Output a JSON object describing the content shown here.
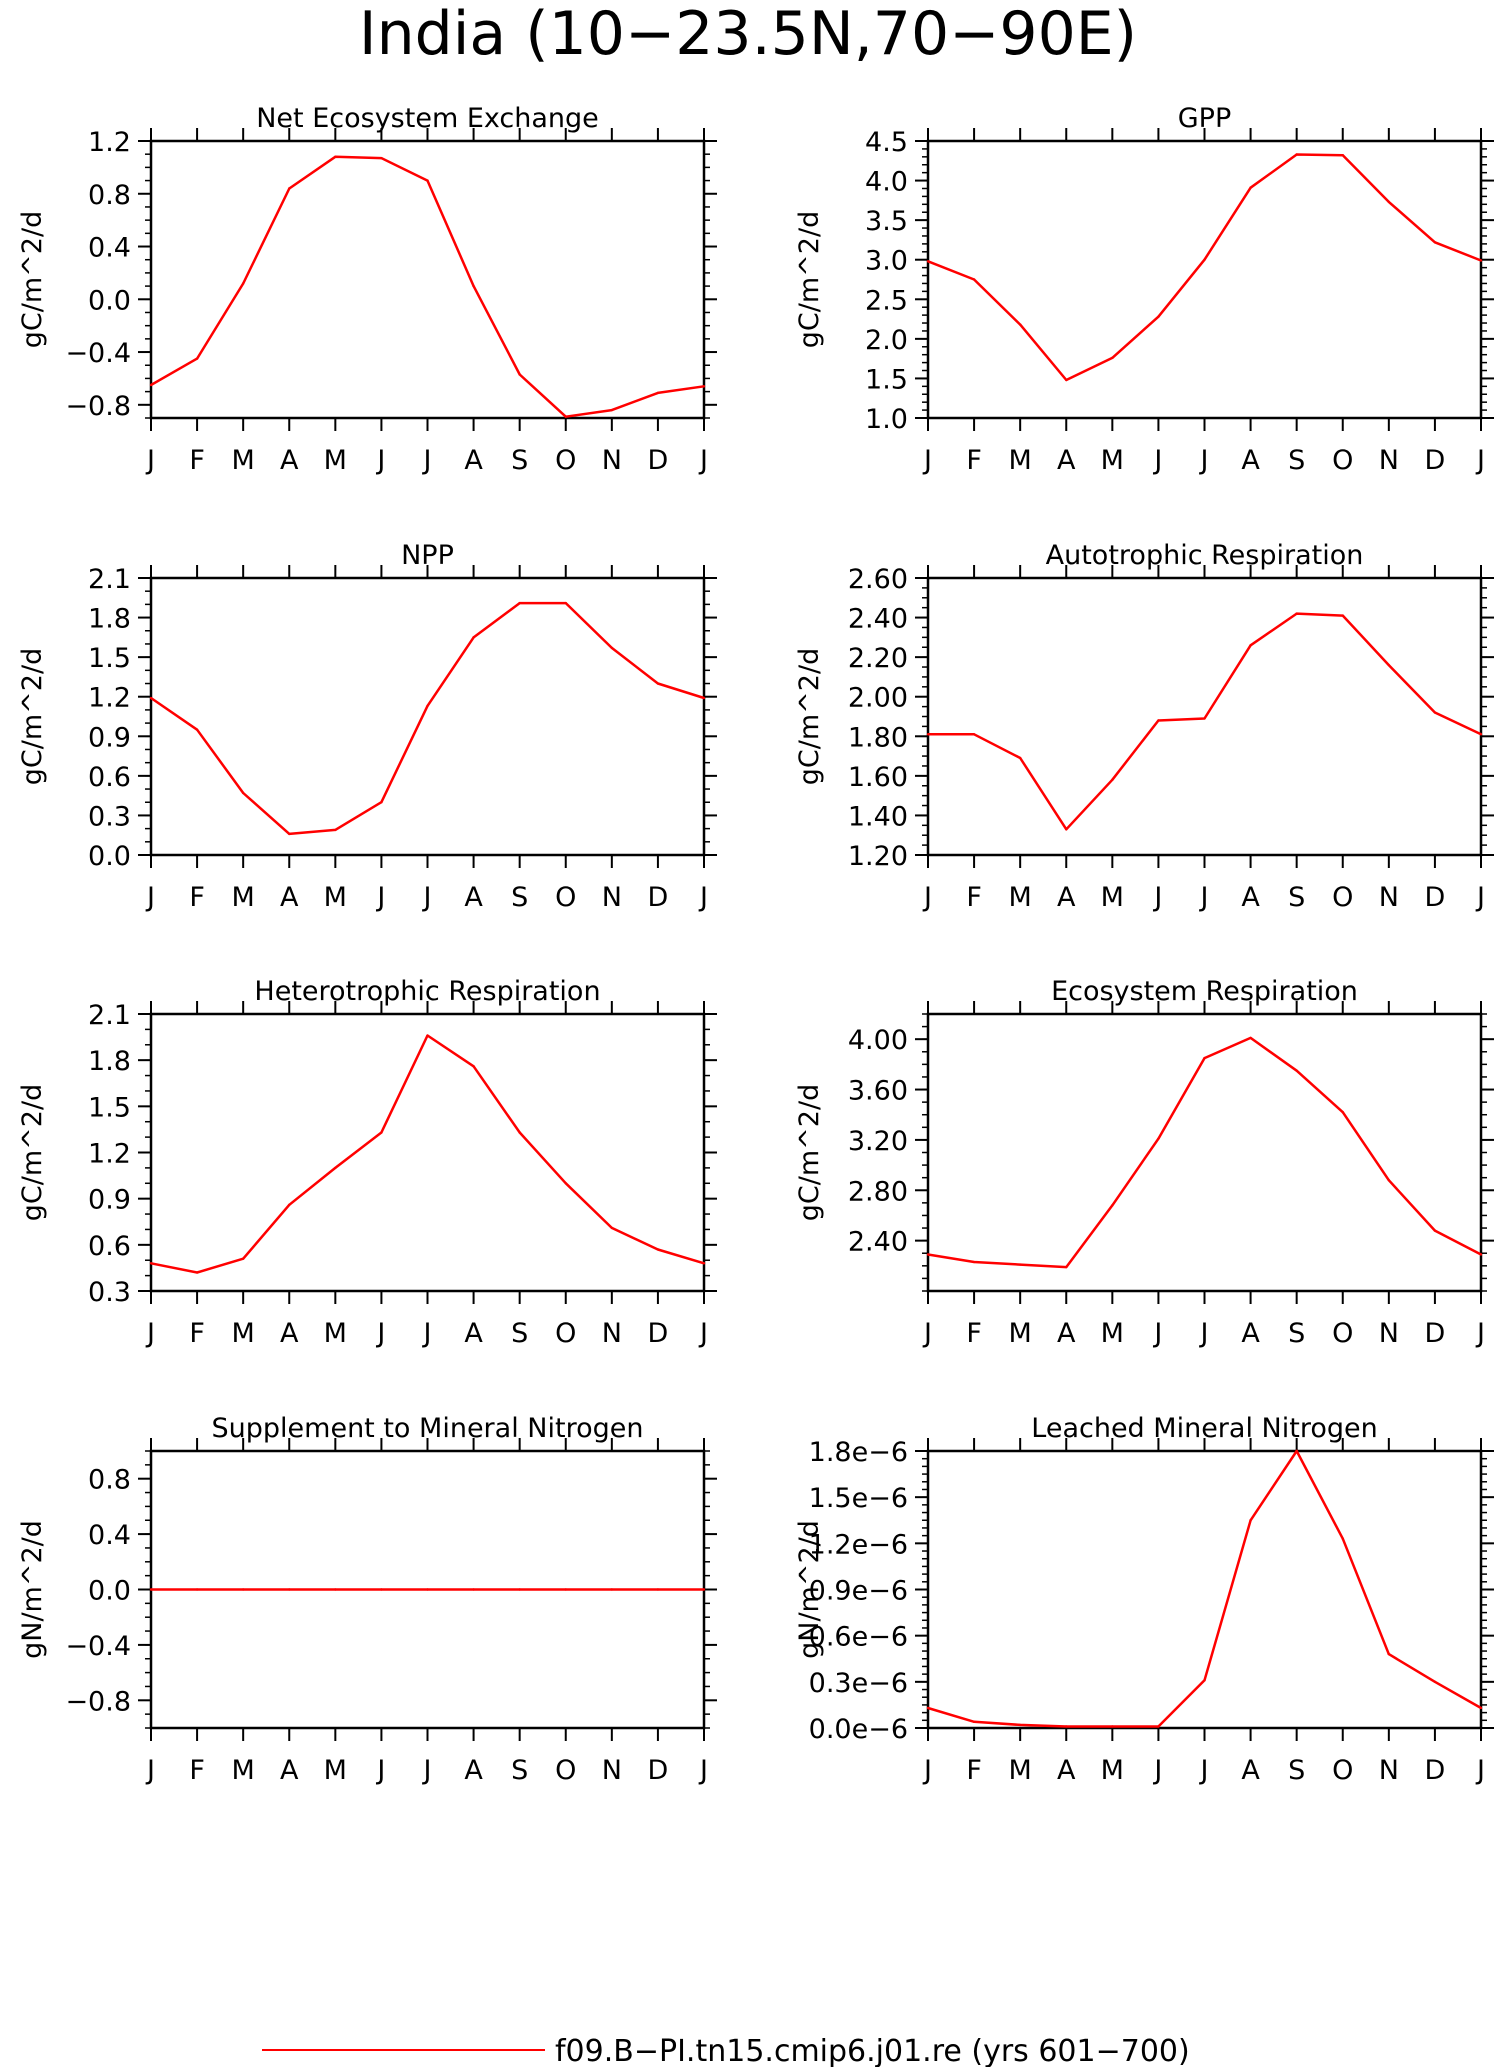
{
  "figure": {
    "title": "India (10−23.5N,70−90E)",
    "line_color": "#ff0000",
    "legend": {
      "label": "f09.B−PI.tn15.cmip6.j01.re (yrs 601−700)",
      "placement": "bottom-center"
    }
  },
  "chart_data": [
    {
      "type": "line",
      "title": "Net Ecosystem Exchange",
      "xlabel": "",
      "ylabel": "gC/m^2/d",
      "categories": [
        "J",
        "F",
        "M",
        "A",
        "M",
        "J",
        "J",
        "A",
        "S",
        "O",
        "N",
        "D",
        "J"
      ],
      "yticks": [
        -0.8,
        -0.4,
        0.0,
        0.4,
        0.8,
        1.2
      ],
      "ytick_labels": [
        "−0.8",
        "−0.4",
        "0.0",
        "0.4",
        "0.8",
        "1.2"
      ],
      "ylim": [
        -0.9,
        1.2
      ],
      "yminor": 0.1,
      "values": [
        -0.65,
        -0.45,
        0.12,
        0.84,
        1.08,
        1.07,
        0.9,
        0.1,
        -0.57,
        -0.89,
        -0.84,
        -0.71,
        -0.66
      ]
    },
    {
      "type": "line",
      "title": "GPP",
      "xlabel": "",
      "ylabel": "gC/m^2/d",
      "categories": [
        "J",
        "F",
        "M",
        "A",
        "M",
        "J",
        "J",
        "A",
        "S",
        "O",
        "N",
        "D",
        "J"
      ],
      "yticks": [
        1.0,
        1.5,
        2.0,
        2.5,
        3.0,
        3.5,
        4.0,
        4.5
      ],
      "ytick_labels": [
        "1.0",
        "1.5",
        "2.0",
        "2.5",
        "3.0",
        "3.5",
        "4.0",
        "4.5"
      ],
      "ylim": [
        1.0,
        4.5
      ],
      "yminor": 0.1,
      "values": [
        2.98,
        2.75,
        2.18,
        1.48,
        1.76,
        2.28,
        3.0,
        3.91,
        4.33,
        4.32,
        3.73,
        3.22,
        2.99
      ]
    },
    {
      "type": "line",
      "title": "NPP",
      "xlabel": "",
      "ylabel": "gC/m^2/d",
      "categories": [
        "J",
        "F",
        "M",
        "A",
        "M",
        "J",
        "J",
        "A",
        "S",
        "O",
        "N",
        "D",
        "J"
      ],
      "yticks": [
        0.0,
        0.3,
        0.6,
        0.9,
        1.2,
        1.5,
        1.8,
        2.1
      ],
      "ytick_labels": [
        "0.0",
        "0.3",
        "0.6",
        "0.9",
        "1.2",
        "1.5",
        "1.8",
        "2.1"
      ],
      "ylim": [
        0.0,
        2.1
      ],
      "yminor": 0.1,
      "values": [
        1.19,
        0.95,
        0.47,
        0.16,
        0.19,
        0.4,
        1.13,
        1.65,
        1.91,
        1.91,
        1.57,
        1.3,
        1.19
      ]
    },
    {
      "type": "line",
      "title": "Autotrophic Respiration",
      "xlabel": "",
      "ylabel": "gC/m^2/d",
      "categories": [
        "J",
        "F",
        "M",
        "A",
        "M",
        "J",
        "J",
        "A",
        "S",
        "O",
        "N",
        "D",
        "J"
      ],
      "yticks": [
        1.2,
        1.4,
        1.6,
        1.8,
        2.0,
        2.2,
        2.4,
        2.6
      ],
      "ytick_labels": [
        "1.20",
        "1.40",
        "1.60",
        "1.80",
        "2.00",
        "2.20",
        "2.40",
        "2.60"
      ],
      "ylim": [
        1.2,
        2.6
      ],
      "yminor": 0.05,
      "values": [
        1.81,
        1.81,
        1.69,
        1.33,
        1.58,
        1.88,
        1.89,
        2.26,
        2.42,
        2.41,
        2.16,
        1.92,
        1.81
      ]
    },
    {
      "type": "line",
      "title": "Heterotrophic Respiration",
      "xlabel": "",
      "ylabel": "gC/m^2/d",
      "categories": [
        "J",
        "F",
        "M",
        "A",
        "M",
        "J",
        "J",
        "A",
        "S",
        "O",
        "N",
        "D",
        "J"
      ],
      "yticks": [
        0.3,
        0.6,
        0.9,
        1.2,
        1.5,
        1.8,
        2.1
      ],
      "ytick_labels": [
        "0.3",
        "0.6",
        "0.9",
        "1.2",
        "1.5",
        "1.8",
        "2.1"
      ],
      "ylim": [
        0.3,
        2.1
      ],
      "yminor": 0.1,
      "values": [
        0.48,
        0.42,
        0.51,
        0.86,
        1.1,
        1.33,
        1.96,
        1.76,
        1.33,
        1.0,
        0.71,
        0.57,
        0.48
      ]
    },
    {
      "type": "line",
      "title": "Ecosystem Respiration",
      "xlabel": "",
      "ylabel": "gC/m^2/d",
      "categories": [
        "J",
        "F",
        "M",
        "A",
        "M",
        "J",
        "J",
        "A",
        "S",
        "O",
        "N",
        "D",
        "J"
      ],
      "yticks": [
        2.4,
        2.8,
        3.2,
        3.6,
        4.0
      ],
      "ytick_labels": [
        "2.40",
        "2.80",
        "3.20",
        "3.60",
        "4.00"
      ],
      "ylim": [
        2.0,
        4.2
      ],
      "yminor": 0.1,
      "values": [
        2.29,
        2.23,
        2.21,
        2.19,
        2.68,
        3.21,
        3.85,
        4.01,
        3.75,
        3.42,
        2.88,
        2.48,
        2.29
      ]
    },
    {
      "type": "line",
      "title": "Supplement to Mineral Nitrogen",
      "xlabel": "",
      "ylabel": "gN/m^2/d",
      "categories": [
        "J",
        "F",
        "M",
        "A",
        "M",
        "J",
        "J",
        "A",
        "S",
        "O",
        "N",
        "D",
        "J"
      ],
      "yticks": [
        -0.8,
        -0.4,
        0.0,
        0.4,
        0.8
      ],
      "ytick_labels": [
        "−0.8",
        "−0.4",
        "0.0",
        "0.4",
        "0.8"
      ],
      "ylim": [
        -1.0,
        1.0
      ],
      "yminor": 0.1,
      "values": [
        0,
        0,
        0,
        0,
        0,
        0,
        0,
        0,
        0,
        0,
        0,
        0,
        0
      ]
    },
    {
      "type": "line",
      "title": "Leached Mineral Nitrogen",
      "xlabel": "",
      "ylabel": "gN/m^2/d",
      "categories": [
        "J",
        "F",
        "M",
        "A",
        "M",
        "J",
        "J",
        "A",
        "S",
        "O",
        "N",
        "D",
        "J"
      ],
      "yticks": [
        0.0,
        0.3,
        0.6,
        0.9,
        1.2,
        1.5,
        1.8
      ],
      "ytick_labels": [
        "0.0e−6",
        "0.3e−6",
        "0.6e−6",
        "0.9e−6",
        "1.2e−6",
        "1.5e−6",
        "1.8e−6"
      ],
      "ylim": [
        0.0,
        1.8
      ],
      "yminor": 0.05,
      "value_scale": "1e-6",
      "values": [
        0.13,
        0.04,
        0.02,
        0.01,
        0.01,
        0.01,
        0.31,
        1.35,
        1.8,
        1.23,
        0.48,
        0.3,
        0.13
      ]
    }
  ]
}
